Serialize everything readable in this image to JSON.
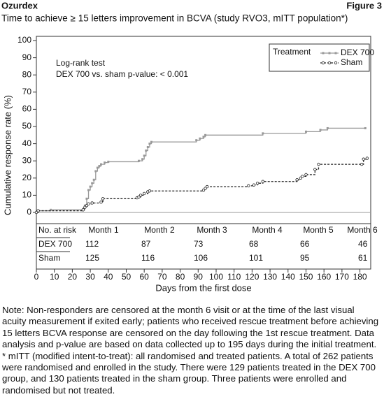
{
  "header": {
    "left": "Ozurdex",
    "right": "Figure 3"
  },
  "chart_data": {
    "type": "step",
    "title": "Time to achieve ≥ 15 letters improvement in BCVA (study RVO3, mITT population*)",
    "x_label": "Days from the first dose",
    "y_label": "Cumulative response rate (%)",
    "annotations": [
      "Log-rank test",
      "DEX 700 vs. sham p-value: < 0.001"
    ],
    "legend_title": "Treatment",
    "xlim": [
      0,
      186
    ],
    "ylim": [
      0,
      100
    ],
    "xticks": [
      0,
      10,
      20,
      30,
      40,
      50,
      60,
      70,
      80,
      90,
      100,
      110,
      120,
      130,
      140,
      150,
      160,
      170,
      180
    ],
    "yticks": [
      0,
      10,
      20,
      30,
      40,
      50,
      60,
      70,
      80,
      90,
      100
    ],
    "series": [
      {
        "name": "DEX 700",
        "color": "#999999",
        "x": [
          0,
          1,
          8,
          26,
          27,
          28,
          29,
          30,
          31,
          32,
          33,
          34,
          35,
          36,
          38,
          40,
          57,
          59,
          60,
          61,
          62,
          63,
          64,
          89,
          91,
          93,
          94,
          126,
          150,
          158,
          162,
          183
        ],
        "values": [
          0,
          1,
          1.5,
          2,
          4,
          8,
          13,
          15,
          17,
          19,
          24,
          26,
          27,
          28,
          29,
          29.5,
          30,
          31,
          33,
          36,
          38,
          40,
          41,
          42,
          43,
          44,
          45,
          46,
          47,
          48,
          49,
          49
        ]
      },
      {
        "name": "Sham",
        "color": "#222222",
        "x": [
          0,
          1,
          26,
          27,
          28,
          29,
          31,
          36,
          37,
          56,
          57,
          58,
          60,
          62,
          63,
          93,
          94,
          95,
          118,
          121,
          123,
          126,
          145,
          147,
          148,
          150,
          155,
          157,
          181,
          182,
          184
        ],
        "values": [
          0,
          1,
          1.5,
          3,
          4,
          5,
          5.5,
          6,
          8,
          8.5,
          9,
          10,
          11,
          12,
          12.5,
          13,
          14,
          15,
          15.5,
          16,
          17,
          18,
          19,
          20,
          21,
          22,
          25,
          28,
          28,
          31,
          31.5
        ]
      }
    ],
    "at_risk": {
      "header": "No. at risk",
      "columns": [
        "Month 1",
        "Month 2",
        "Month 3",
        "Month 4",
        "Month 5",
        "Month 6"
      ],
      "rows": [
        {
          "name": "DEX 700",
          "values": [
            112,
            87,
            73,
            68,
            66,
            46
          ]
        },
        {
          "name": "Sham",
          "values": [
            125,
            116,
            106,
            101,
            95,
            61
          ]
        }
      ]
    }
  },
  "notes": [
    "Note: Non-responders are censored at the month 6 visit or at the time of the last visual acuity measurement if exited early; patients who received rescue treatment before achieving 15 letters BCVA response are censored on the day following the 1st rescue treatment. Data analysis and p-value are based on data collected up to 195 days during the initial treatment.",
    "* mITT (modified intent-to-treat): all randomised and treated patients. A total of 262 patients were randomised and enrolled in the study. There were 129 patients treated in the DEX 700 group, and 130 patients treated in the sham group. Three patients were enrolled and randomised but not treated."
  ]
}
